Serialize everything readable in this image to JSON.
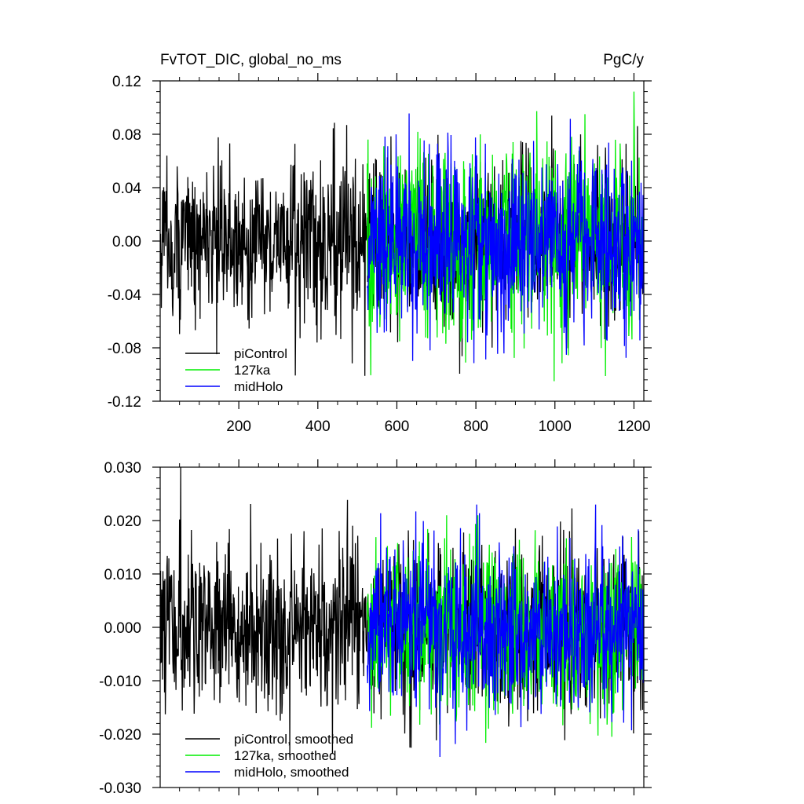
{
  "chart_data": [
    {
      "type": "line",
      "title": "FvTOT_DIC, global_no_ms",
      "title_right": "PgC/y",
      "xlabel": "",
      "ylabel": "",
      "xlim": [
        1,
        1225
      ],
      "ylim": [
        -0.12,
        0.12
      ],
      "xticks": [
        200,
        400,
        600,
        800,
        1000,
        1200
      ],
      "xtick_labels": [
        "200",
        "400",
        "600",
        "800",
        "1000",
        "1200"
      ],
      "yticks": [
        -0.12,
        -0.08,
        -0.04,
        0.0,
        0.04,
        0.08,
        0.12
      ],
      "ytick_labels": [
        "-0.12",
        "-0.08",
        "-0.04",
        "0.00",
        "0.04",
        "0.08",
        "0.12"
      ],
      "legend_position": "bottom-left",
      "series": [
        {
          "name": "piControl",
          "color": "#000000",
          "x_range": [
            1,
            1225
          ],
          "mean": 0.0,
          "std": 0.03,
          "min": -0.101,
          "max": 0.094
        },
        {
          "name": "127ka",
          "color": "#00ee00",
          "x_range": [
            525,
            1225
          ],
          "mean": 0.0,
          "std": 0.035,
          "min": -0.105,
          "max": 0.118
        },
        {
          "name": "midHolo",
          "color": "#0000ff",
          "x_range": [
            525,
            1225
          ],
          "mean": 0.0,
          "std": 0.033,
          "min": -0.11,
          "max": 0.119
        }
      ]
    },
    {
      "type": "line",
      "title": "",
      "xlabel": "",
      "ylabel": "",
      "xlim": [
        1,
        1225
      ],
      "ylim": [
        -0.03,
        0.03
      ],
      "xticks": [
        200,
        400,
        600,
        800,
        1000,
        1200
      ],
      "xtick_labels": [],
      "yticks": [
        -0.03,
        -0.02,
        -0.01,
        0.0,
        0.01,
        0.02,
        0.03
      ],
      "ytick_labels": [
        "-0.030",
        "-0.020",
        "-0.010",
        "0.000",
        "0.010",
        "0.020",
        "0.030"
      ],
      "legend_position": "bottom-left",
      "series": [
        {
          "name": "piControl, smoothed",
          "color": "#000000",
          "x_range": [
            1,
            1225
          ],
          "mean": 0.0,
          "std": 0.008,
          "min": -0.028,
          "max": 0.03
        },
        {
          "name": "127ka, smoothed",
          "color": "#00ee00",
          "x_range": [
            525,
            1225
          ],
          "mean": 0.0,
          "std": 0.008,
          "min": -0.027,
          "max": 0.021
        },
        {
          "name": "midHolo, smoothed",
          "color": "#0000ff",
          "x_range": [
            525,
            1225
          ],
          "mean": 0.0,
          "std": 0.008,
          "min": -0.026,
          "max": 0.023
        }
      ]
    }
  ]
}
